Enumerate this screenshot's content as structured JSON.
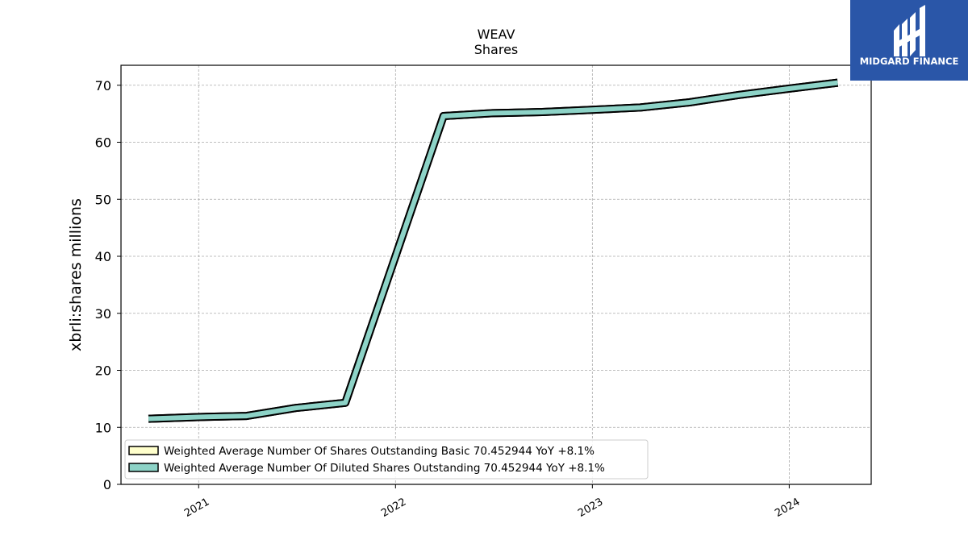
{
  "chart_data": {
    "type": "line",
    "title": "WEAV",
    "subtitle": "Shares",
    "ylabel": "xbrli:shares millions",
    "xlabel": "",
    "ylim": [
      0,
      73.5
    ],
    "xlim": [
      "2020-08-10",
      "2024-06-01"
    ],
    "yticks": [
      0,
      10,
      20,
      30,
      40,
      50,
      60,
      70
    ],
    "xticks": [
      {
        "date": "2021-01-01",
        "label": "2021"
      },
      {
        "date": "2022-01-01",
        "label": "2022"
      },
      {
        "date": "2023-01-01",
        "label": "2023"
      },
      {
        "date": "2024-01-01",
        "label": "2024"
      }
    ],
    "grid": true,
    "legend_position": "lower-left",
    "series": [
      {
        "name": "Weighted Average Number Of Shares Outstanding Basic  70.452944 YoY +8.1%",
        "color": "#ffffcc",
        "x": [
          "2020-09-30",
          "2020-12-31",
          "2021-03-31",
          "2021-06-30",
          "2021-09-30",
          "2022-03-31",
          "2022-06-30",
          "2022-09-30",
          "2022-12-31",
          "2023-03-31",
          "2023-06-30",
          "2023-09-30",
          "2023-12-31",
          "2024-03-31"
        ],
        "values": [
          11.5,
          11.8,
          12.0,
          13.4,
          14.3,
          64.6,
          65.1,
          65.3,
          65.7,
          66.1,
          67.0,
          68.3,
          69.4,
          70.45
        ]
      },
      {
        "name": "Weighted Average Number Of Diluted Shares Outstanding  70.452944 YoY +8.1%",
        "color": "#8dd3c7",
        "x": [
          "2020-09-30",
          "2020-12-31",
          "2021-03-31",
          "2021-06-30",
          "2021-09-30",
          "2022-03-31",
          "2022-06-30",
          "2022-09-30",
          "2022-12-31",
          "2023-03-31",
          "2023-06-30",
          "2023-09-30",
          "2023-12-31",
          "2024-03-31"
        ],
        "values": [
          11.5,
          11.8,
          12.0,
          13.4,
          14.3,
          64.6,
          65.1,
          65.3,
          65.7,
          66.1,
          67.0,
          68.3,
          69.4,
          70.45
        ]
      }
    ]
  },
  "logo": {
    "text": "MIDGARD FINANCE",
    "background": "#2a56a8"
  }
}
